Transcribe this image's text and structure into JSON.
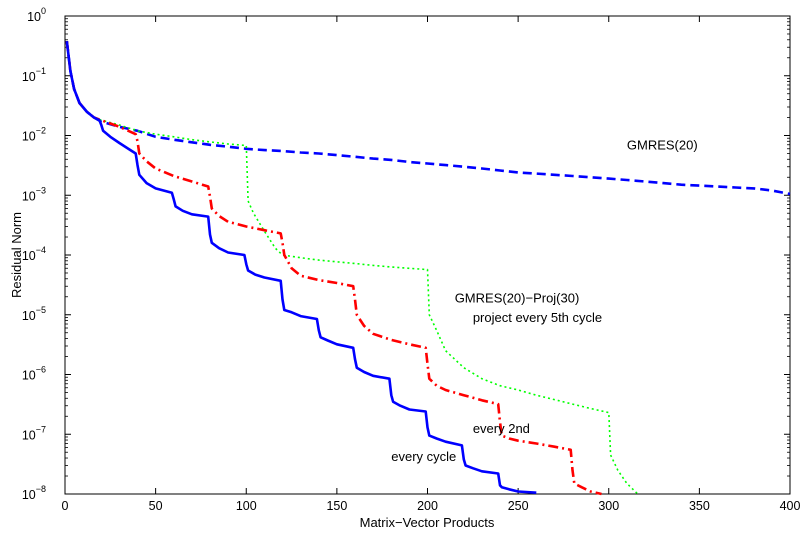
{
  "chart_data": {
    "type": "line",
    "xlabel": "Matrix−Vector Products",
    "ylabel": "Residual Norm",
    "xlim": [
      0,
      400
    ],
    "ylim": [
      1e-08,
      1
    ],
    "yscale": "log",
    "x_ticks": [
      "0",
      "50",
      "100",
      "150",
      "200",
      "250",
      "300",
      "350",
      "400"
    ],
    "y_ticks": [
      {
        "base": "10",
        "exp": "0",
        "value": 1
      },
      {
        "base": "10",
        "exp": "−1",
        "value": 0.1
      },
      {
        "base": "10",
        "exp": "−2",
        "value": 0.01
      },
      {
        "base": "10",
        "exp": "−3",
        "value": 0.001
      },
      {
        "base": "10",
        "exp": "−4",
        "value": 0.0001
      },
      {
        "base": "10",
        "exp": "−5",
        "value": 1e-05
      },
      {
        "base": "10",
        "exp": "−6",
        "value": 1e-06
      },
      {
        "base": "10",
        "exp": "−7",
        "value": 1e-07
      },
      {
        "base": "10",
        "exp": "−8",
        "value": 1e-08
      }
    ],
    "grid": false,
    "legend": "none",
    "annotations": [
      {
        "text": "GMRES(20)",
        "x": 310,
        "y": 0.0058
      },
      {
        "text": "GMRES(20)−Proj(30)",
        "x": 215,
        "y": 1.6e-05
      },
      {
        "text": "project every 5th cycle",
        "x": 225,
        "y": 7.5e-06
      },
      {
        "text": "every 2nd",
        "x": 225,
        "y": 1.05e-07
      },
      {
        "text": "every cycle",
        "x": 180,
        "y": 3.6e-08
      }
    ],
    "series": [
      {
        "color": "#0000ff",
        "style": "dashed",
        "x": [
          1,
          3,
          5,
          8,
          12,
          16,
          20,
          30,
          40,
          50,
          60,
          70,
          80,
          90,
          100,
          110,
          120,
          130,
          140,
          150,
          160,
          170,
          180,
          190,
          200,
          210,
          220,
          230,
          240,
          250,
          260,
          270,
          280,
          290,
          300,
          310,
          320,
          330,
          340,
          350,
          360,
          370,
          380,
          390,
          400
        ],
        "y": [
          0.38,
          0.12,
          0.06,
          0.035,
          0.025,
          0.02,
          0.017,
          0.014,
          0.012,
          0.0095,
          0.0085,
          0.0077,
          0.007,
          0.0065,
          0.006,
          0.0057,
          0.0055,
          0.0052,
          0.005,
          0.0047,
          0.0044,
          0.0041,
          0.0039,
          0.0036,
          0.0034,
          0.0032,
          0.003,
          0.0028,
          0.0026,
          0.0024,
          0.0023,
          0.0022,
          0.0021,
          0.002,
          0.0019,
          0.0018,
          0.0017,
          0.0016,
          0.0015,
          0.00145,
          0.0014,
          0.00135,
          0.0013,
          0.0012,
          0.00105
        ]
      },
      {
        "color": "#00ff00",
        "style": "dotted",
        "x": [
          1,
          3,
          5,
          8,
          12,
          16,
          20,
          30,
          40,
          50,
          60,
          70,
          80,
          90,
          100,
          101,
          104,
          110,
          116,
          120,
          130,
          140,
          150,
          160,
          170,
          180,
          190,
          200,
          201,
          205,
          210,
          220,
          230,
          240,
          250,
          260,
          270,
          280,
          290,
          300,
          301,
          305,
          310,
          316
        ],
        "y": [
          0.38,
          0.12,
          0.06,
          0.035,
          0.025,
          0.02,
          0.018,
          0.015,
          0.012,
          0.0105,
          0.0095,
          0.0085,
          0.0078,
          0.0072,
          0.0068,
          0.0008,
          0.0005,
          0.00025,
          0.00013,
          0.0001,
          9e-05,
          8.2e-05,
          7.7e-05,
          7.2e-05,
          6.7e-05,
          6.3e-05,
          6e-05,
          5.7e-05,
          1e-05,
          5.5e-06,
          2.5e-06,
          1.3e-06,
          8.5e-07,
          6.5e-07,
          5.5e-07,
          4.5e-07,
          3.8e-07,
          3.2e-07,
          2.7e-07,
          2.3e-07,
          4.5e-08,
          2.5e-08,
          1.5e-08,
          1e-08
        ]
      },
      {
        "color": "#ff0000",
        "style": "dashdot",
        "x": [
          1,
          3,
          5,
          8,
          12,
          16,
          20,
          30,
          39,
          40,
          41,
          45,
          50,
          60,
          70,
          79,
          80,
          81,
          85,
          90,
          100,
          110,
          119,
          120,
          121,
          125,
          130,
          140,
          150,
          159,
          160,
          161,
          165,
          170,
          180,
          190,
          199,
          200,
          201,
          205,
          210,
          220,
          230,
          239,
          240,
          241,
          245,
          250,
          260,
          270,
          279,
          280,
          281,
          285,
          290,
          296
        ],
        "y": [
          0.38,
          0.12,
          0.06,
          0.035,
          0.025,
          0.02,
          0.018,
          0.014,
          0.0105,
          0.008,
          0.005,
          0.0037,
          0.0028,
          0.0021,
          0.0017,
          0.0014,
          0.00095,
          0.0006,
          0.00045,
          0.00036,
          0.0003,
          0.00026,
          0.00023,
          0.00016,
          0.0001,
          6e-05,
          4.5e-05,
          3.8e-05,
          3.4e-05,
          3e-05,
          1.8e-05,
          1e-05,
          6.5e-06,
          4.8e-06,
          3.8e-06,
          3.2e-06,
          2.8e-06,
          1.5e-06,
          8.5e-07,
          6.5e-07,
          5.5e-07,
          4.5e-07,
          3.7e-07,
          3.2e-07,
          1.6e-07,
          9.5e-08,
          8.5e-08,
          7.8e-08,
          7e-08,
          6.2e-08,
          5.5e-08,
          2.5e-08,
          1.5e-08,
          1.3e-08,
          1.1e-08,
          1e-08
        ]
      },
      {
        "color": "#0000ff",
        "style": "solid",
        "x": [
          1,
          3,
          5,
          8,
          12,
          16,
          19,
          20,
          21,
          25,
          30,
          39,
          40,
          41,
          45,
          50,
          59,
          60,
          61,
          65,
          70,
          79,
          80,
          81,
          85,
          90,
          99,
          100,
          101,
          105,
          110,
          119,
          120,
          121,
          125,
          130,
          139,
          140,
          141,
          145,
          150,
          159,
          160,
          161,
          165,
          170,
          179,
          180,
          181,
          185,
          190,
          199,
          200,
          201,
          205,
          210,
          219,
          220,
          221,
          225,
          230,
          239,
          240,
          241,
          245,
          250,
          260
        ],
        "y": [
          0.38,
          0.12,
          0.06,
          0.035,
          0.025,
          0.02,
          0.018,
          0.015,
          0.012,
          0.0095,
          0.0075,
          0.005,
          0.0032,
          0.0022,
          0.0016,
          0.0013,
          0.0011,
          0.00085,
          0.00065,
          0.00055,
          0.00048,
          0.00044,
          0.00022,
          0.00016,
          0.00013,
          0.00011,
          0.0001,
          7e-05,
          5.5e-05,
          4.7e-05,
          4.2e-05,
          3.7e-05,
          1.8e-05,
          1.2e-05,
          1.1e-05,
          9.5e-06,
          8.5e-06,
          5.5e-06,
          4.2e-06,
          3.7e-06,
          3.2e-06,
          2.8e-06,
          1.8e-06,
          1.3e-06,
          1.1e-06,
          9.5e-07,
          8.5e-07,
          4.5e-07,
          3.5e-07,
          3e-07,
          2.6e-07,
          2.4e-07,
          1.3e-07,
          9.5e-08,
          8.5e-08,
          7.5e-08,
          6.5e-08,
          3.8e-08,
          3e-08,
          2.7e-08,
          2.4e-08,
          2.2e-08,
          1.4e-08,
          1.3e-08,
          1.2e-08,
          1.1e-08,
          1.05e-08
        ]
      }
    ]
  }
}
